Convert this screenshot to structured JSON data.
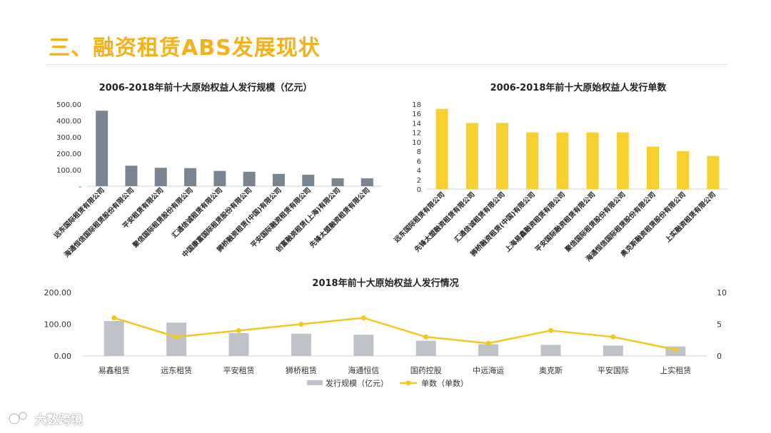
{
  "slide": {
    "title": "三、融资租赁ABS发展现状"
  },
  "watermark": {
    "text": "大数跨境"
  },
  "colors": {
    "title": "#f3b21b",
    "gray_bar": "#7a8592",
    "yellow_bar": "#f5d02e",
    "light_gray_bar": "#bfc3c9",
    "line": "#f2c81f"
  },
  "chart_data": [
    {
      "type": "bar",
      "title": "2006-2018年前十大原始权益人发行规模（亿元）",
      "categories": [
        "远东国际租赁有限公司",
        "海通恒信国际租赁股份有限公司",
        "平安租赁有限公司",
        "聚信国际租赁股份有限公司",
        "汇通信诚租赁有限公司",
        "中国康富国际租赁股份有限公司",
        "狮桥融资租赁(中国)有限公司",
        "平安国际融资租赁有限公司",
        "创富融资租赁(上海)有限公司",
        "先锋太盟融资租赁有限公司"
      ],
      "values": [
        460,
        125,
        112,
        110,
        93,
        88,
        75,
        70,
        48,
        48
      ],
      "ylim": [
        0,
        500
      ],
      "yticks": [
        "-",
        "100.00",
        "200.00",
        "300.00",
        "400.00",
        "500.00"
      ]
    },
    {
      "type": "bar",
      "title": "2006-2018年前十大原始权益人发行单数",
      "categories": [
        "远东国际租赁有限公司",
        "先锋太盟融资租赁有限公司",
        "汇通信诚租赁有限公司",
        "狮桥融资租赁(中国)有限公司",
        "上海易鑫融资租赁有限公司",
        "平安国际融资租赁有限公司",
        "聚信国际租赁股份有限公司",
        "海通恒信国际租赁股份有限公司",
        "奥克斯融资租赁股份有限公司",
        "上实融资租赁有限公司"
      ],
      "values": [
        17,
        14,
        14,
        12,
        12,
        12,
        12,
        9,
        8,
        7
      ],
      "ylim": [
        0,
        18
      ],
      "yticks": [
        "0",
        "2",
        "4",
        "6",
        "8",
        "10",
        "12",
        "14",
        "16",
        "18"
      ]
    },
    {
      "type": "bar+line",
      "title": "2018年前十大原始权益人发行情况",
      "categories": [
        "易鑫租赁",
        "远东租赁",
        "平安租赁",
        "狮桥租赁",
        "海通恒信",
        "国药控股",
        "中远海运",
        "奥克斯",
        "平安国际",
        "上实租赁"
      ],
      "series": [
        {
          "name": "发行规模（亿元）",
          "type": "bar",
          "axis": "left",
          "values": [
            110,
            105,
            72,
            70,
            67,
            48,
            37,
            35,
            33,
            30
          ]
        },
        {
          "name": "单数（单数）",
          "type": "line",
          "axis": "right",
          "values": [
            6,
            3,
            4,
            5,
            6,
            3,
            2,
            4,
            3,
            1
          ]
        }
      ],
      "ylim_left": [
        0,
        200
      ],
      "ylim_right": [
        0,
        10
      ],
      "yticks_left": [
        "0.00",
        "100.00",
        "200.00"
      ],
      "yticks_right": [
        "0",
        "5",
        "10"
      ]
    }
  ]
}
